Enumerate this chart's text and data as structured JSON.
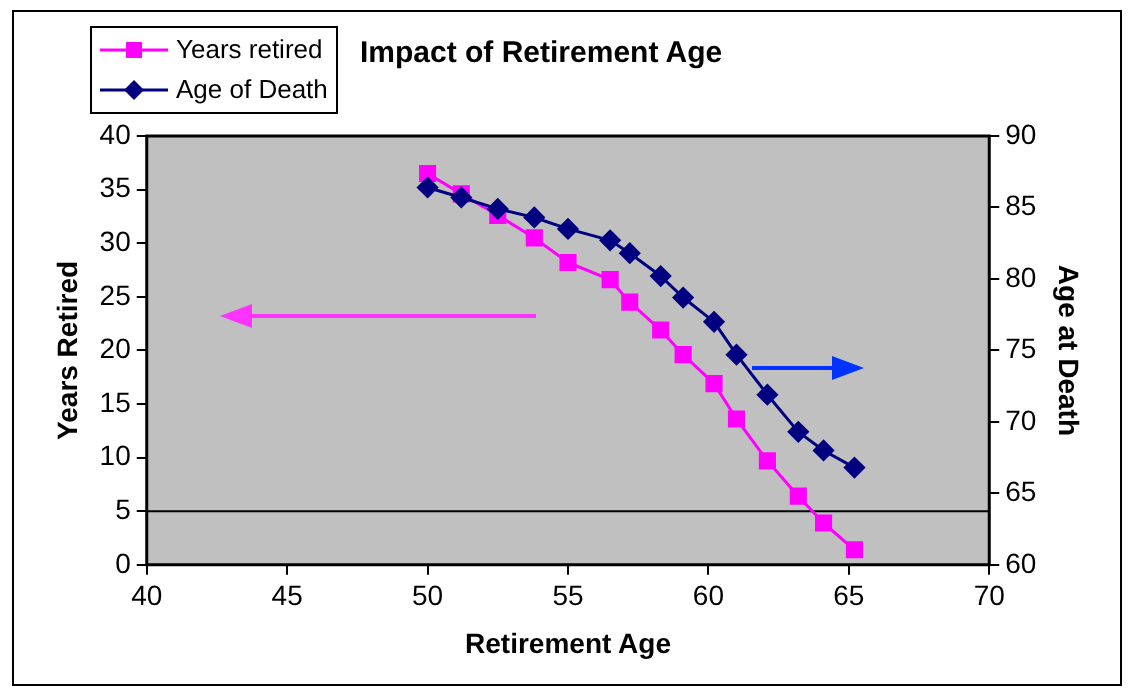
{
  "chart_data": {
    "type": "line",
    "title": "Impact of Retirement Age",
    "xlabel": "Retirement Age",
    "ylabel": "Years Retired",
    "y2label": "Age at Death",
    "xlim": [
      40,
      70
    ],
    "xticks": [
      40,
      45,
      50,
      55,
      60,
      65,
      70
    ],
    "ylim": [
      0,
      40
    ],
    "yticks": [
      0,
      5,
      10,
      15,
      20,
      25,
      30,
      35,
      40
    ],
    "y2lim": [
      60,
      90
    ],
    "y2ticks": [
      60,
      65,
      70,
      75,
      80,
      85,
      90
    ],
    "legend": "top left",
    "series": [
      {
        "name": "Years retired",
        "color": "#ff00ff",
        "marker": "square",
        "x": [
          50,
          51.2,
          52.5,
          53.8,
          55,
          56.5,
          57.2,
          58.3,
          59.1,
          60.2,
          61,
          62.1,
          63.2,
          64.1,
          65.2
        ],
        "values": [
          36.5,
          34.6,
          32.6,
          30.5,
          28.2,
          26.6,
          24.5,
          21.9,
          19.6,
          16.9,
          13.6,
          9.7,
          6.4,
          3.9,
          1.4
        ]
      },
      {
        "name": "Age of Death",
        "color": "#000080",
        "marker": "diamond",
        "axis": "y2",
        "x": [
          50,
          51.2,
          52.5,
          53.8,
          55,
          56.5,
          57.2,
          58.3,
          59.1,
          60.2,
          61,
          62.1,
          63.2,
          64.1,
          65.2
        ],
        "values": [
          86.4,
          85.7,
          84.9,
          84.3,
          83.5,
          82.7,
          81.8,
          80.2,
          78.7,
          77.0,
          74.7,
          71.9,
          69.3,
          68.0,
          66.8
        ]
      }
    ],
    "ref_lines": [
      {
        "axis": "y",
        "value": 5,
        "color": "#000000"
      }
    ]
  }
}
